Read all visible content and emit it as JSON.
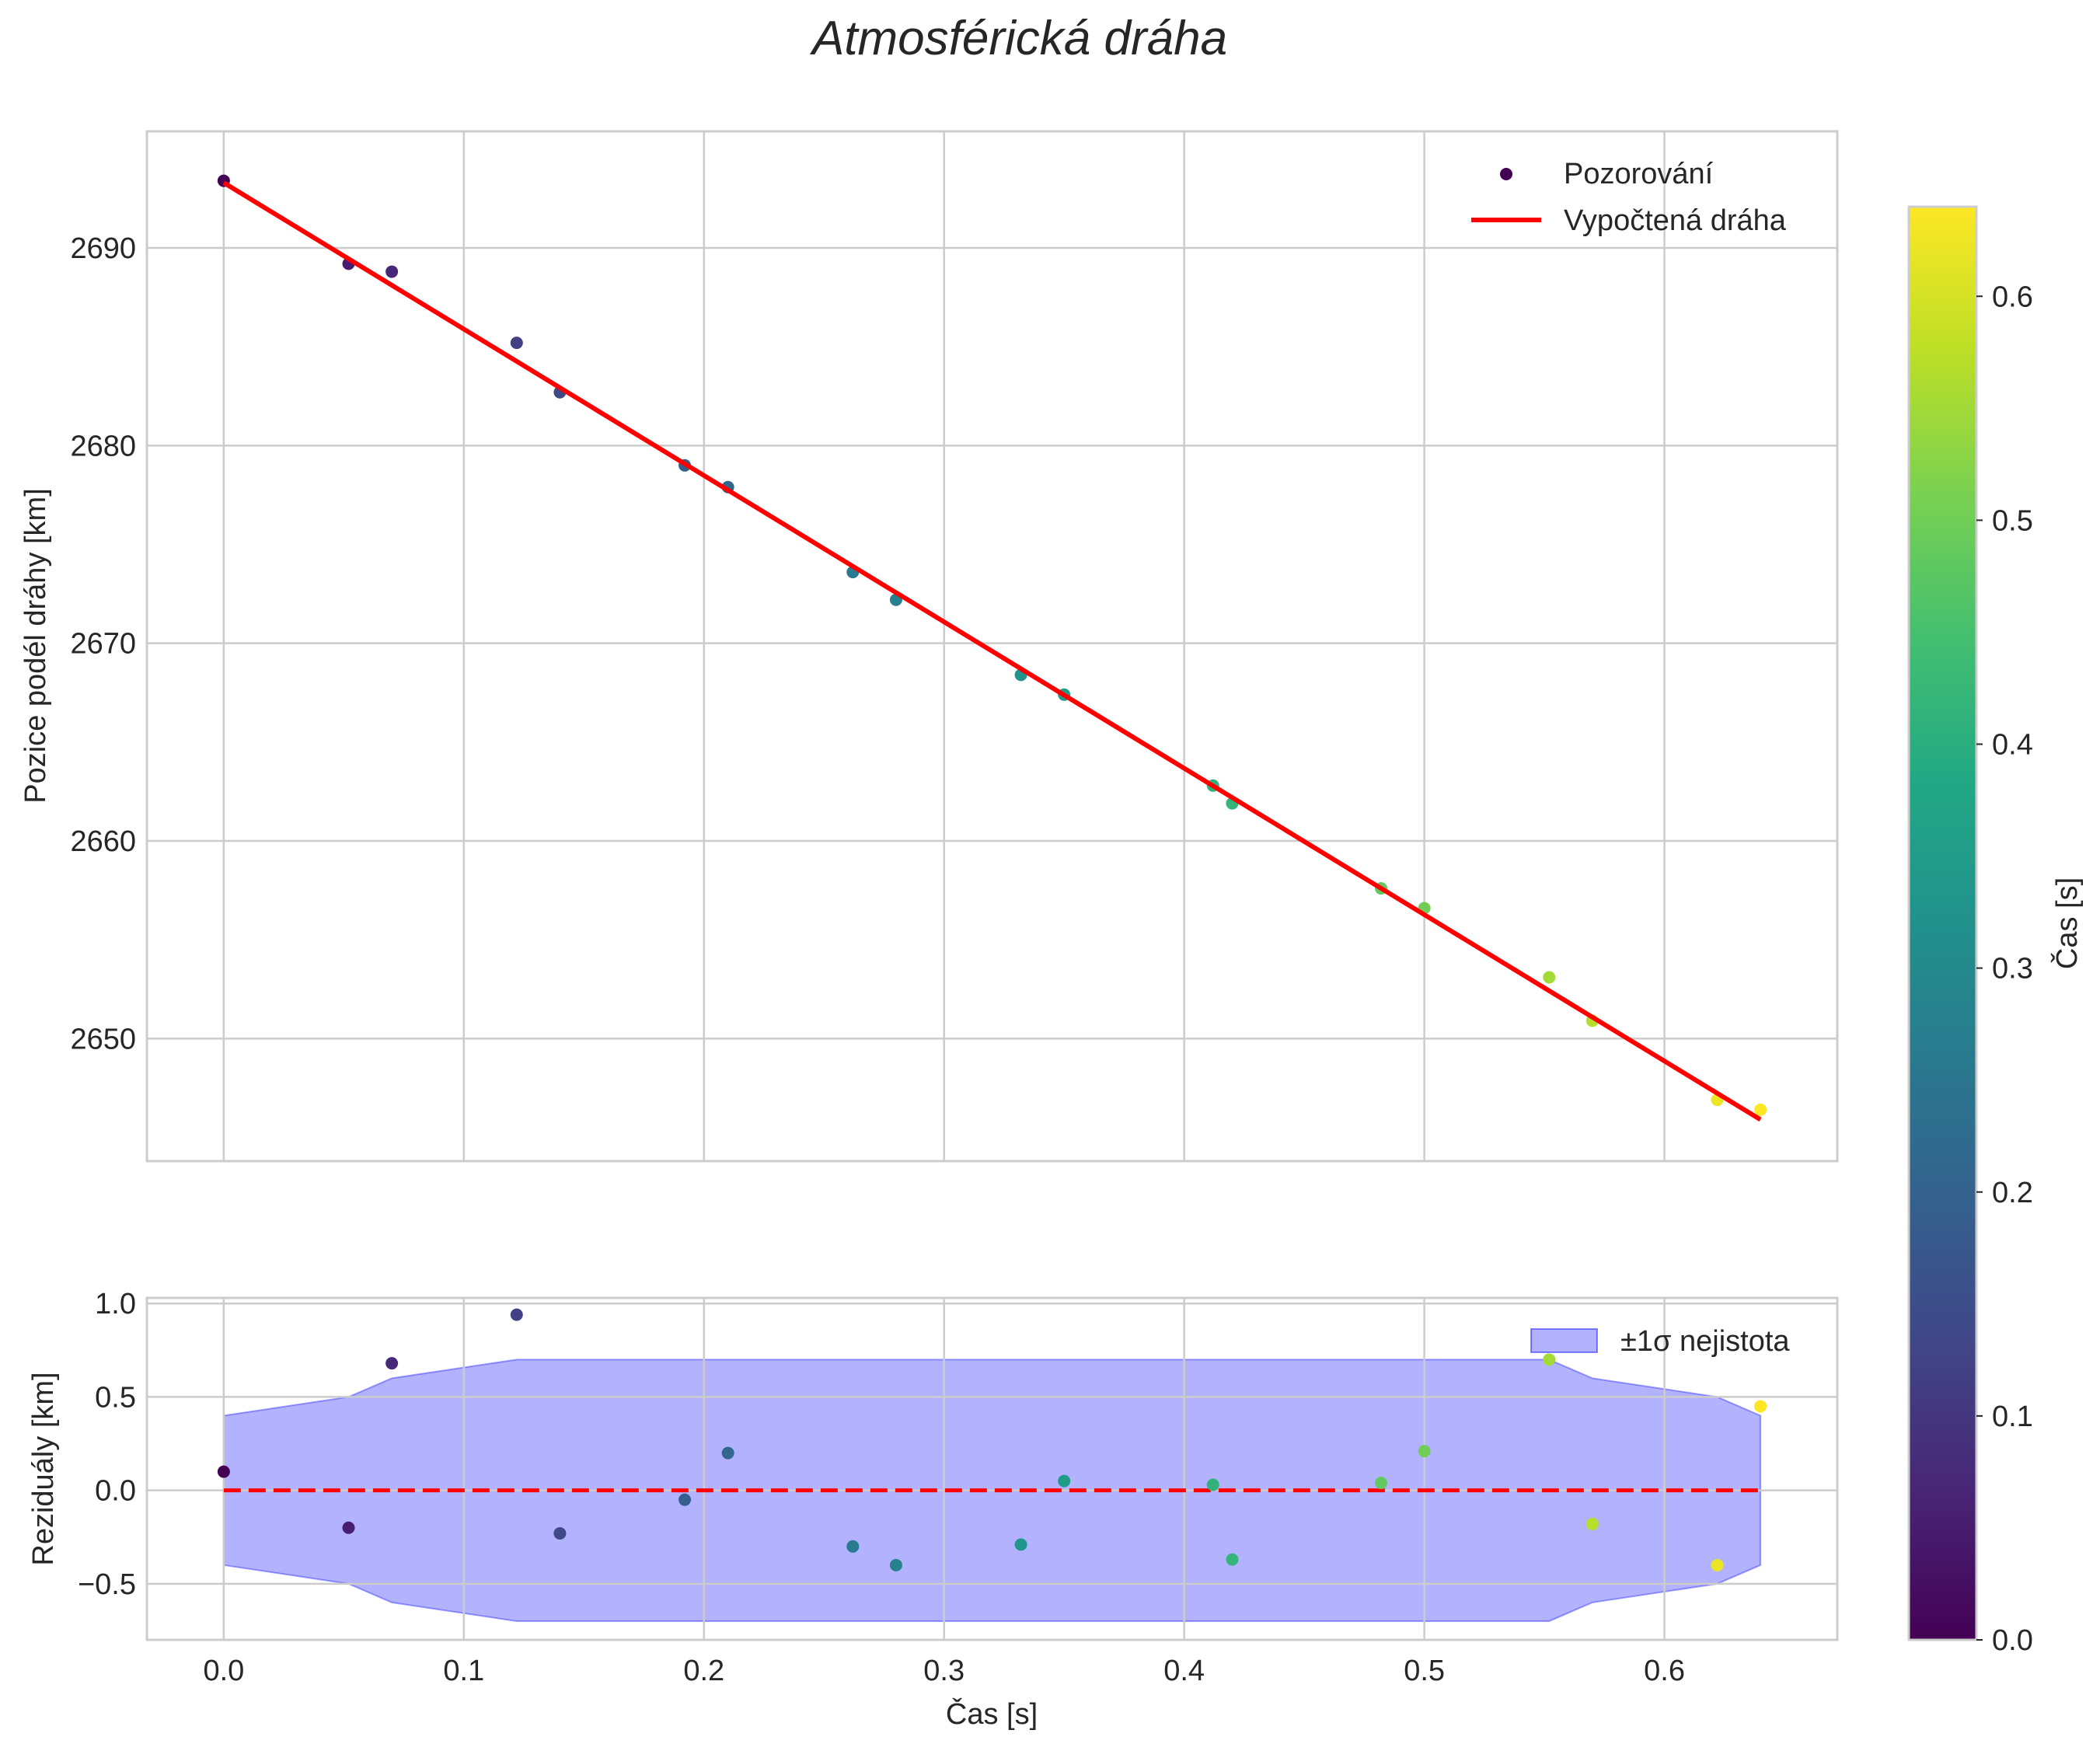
{
  "chart_data": [
    {
      "type": "scatter",
      "panel": "main",
      "title": "Atmosférická dráha",
      "xlabel": "",
      "ylabel": "Pozice podél dráhy [km]",
      "xlim": [
        -0.032,
        0.672
      ],
      "ylim": [
        2643.8,
        2695.9
      ],
      "x_ticks": [
        0.0,
        0.1,
        0.2,
        0.3,
        0.4,
        0.5,
        0.6
      ],
      "y_ticks": [
        2650,
        2660,
        2670,
        2680,
        2690
      ],
      "y_tick_labels": [
        "2650",
        "2660",
        "2670",
        "2680",
        "2690"
      ],
      "grid": true,
      "legend": {
        "position": "top-right",
        "entries": [
          "Pozorování",
          "Vypočtená dráha"
        ]
      },
      "series": [
        {
          "name": "Pozorování",
          "kind": "scatter",
          "colormap": "viridis",
          "x": [
            0.0,
            0.052,
            0.07,
            0.122,
            0.14,
            0.192,
            0.21,
            0.262,
            0.28,
            0.332,
            0.35,
            0.412,
            0.42,
            0.482,
            0.5,
            0.552,
            0.57,
            0.622,
            0.64
          ],
          "y": [
            2693.4,
            2689.2,
            2688.8,
            2685.2,
            2682.7,
            2679.0,
            2677.9,
            2673.6,
            2672.2,
            2668.4,
            2667.4,
            2662.8,
            2661.9,
            2657.6,
            2656.6,
            2653.1,
            2650.9,
            2646.9,
            2646.4
          ]
        },
        {
          "name": "Vypočtená dráha",
          "kind": "line",
          "color": "#ff0000",
          "x": [
            0.0,
            0.64
          ],
          "y": [
            2693.3,
            2645.9
          ]
        }
      ]
    },
    {
      "type": "scatter",
      "panel": "residuals",
      "xlabel": "Čas [s]",
      "ylabel": "Reziduály [km]",
      "xlim": [
        -0.032,
        0.672
      ],
      "ylim": [
        -0.8,
        1.03
      ],
      "x_ticks": [
        0.0,
        0.1,
        0.2,
        0.3,
        0.4,
        0.5,
        0.6
      ],
      "x_tick_labels": [
        "0.0",
        "0.1",
        "0.2",
        "0.3",
        "0.4",
        "0.5",
        "0.6"
      ],
      "y_ticks": [
        -0.5,
        0.0,
        0.5,
        1.0
      ],
      "y_tick_labels": [
        "−0.5",
        "0.0",
        "0.5",
        "1.0"
      ],
      "grid": true,
      "legend": {
        "position": "top-right",
        "entries": [
          "±1σ nejistota"
        ]
      },
      "reference_line": {
        "y": 0.0,
        "color": "#ff0000",
        "style": "dashed"
      },
      "series": [
        {
          "name": "Reziduály",
          "kind": "scatter",
          "colormap": "viridis",
          "x": [
            0.0,
            0.052,
            0.07,
            0.122,
            0.14,
            0.192,
            0.21,
            0.262,
            0.28,
            0.332,
            0.35,
            0.412,
            0.42,
            0.482,
            0.5,
            0.552,
            0.57,
            0.622,
            0.64
          ],
          "y": [
            0.1,
            -0.2,
            0.68,
            0.94,
            -0.23,
            -0.05,
            0.2,
            -0.3,
            -0.4,
            -0.29,
            0.05,
            0.03,
            -0.37,
            0.04,
            0.21,
            0.7,
            -0.18,
            -0.4,
            0.45
          ]
        },
        {
          "name": "±1σ nejistota",
          "kind": "band",
          "color": "#0000ff",
          "opacity": 0.3,
          "x": [
            0.0,
            0.052,
            0.07,
            0.122,
            0.14,
            0.192,
            0.21,
            0.262,
            0.28,
            0.332,
            0.35,
            0.412,
            0.42,
            0.482,
            0.5,
            0.552,
            0.57,
            0.622,
            0.64
          ],
          "sigma": [
            0.4,
            0.5,
            0.6,
            0.7,
            0.7,
            0.7,
            0.7,
            0.7,
            0.7,
            0.7,
            0.7,
            0.7,
            0.7,
            0.7,
            0.7,
            0.7,
            0.6,
            0.5,
            0.4
          ]
        }
      ]
    },
    {
      "type": "colorbar",
      "label": "Čas [s]",
      "colormap": "viridis",
      "range": [
        0.0,
        0.64
      ],
      "ticks": [
        0.0,
        0.1,
        0.2,
        0.3,
        0.4,
        0.5,
        0.6
      ],
      "tick_labels": [
        "0.0",
        "0.1",
        "0.2",
        "0.3",
        "0.4",
        "0.5",
        "0.6"
      ]
    }
  ]
}
